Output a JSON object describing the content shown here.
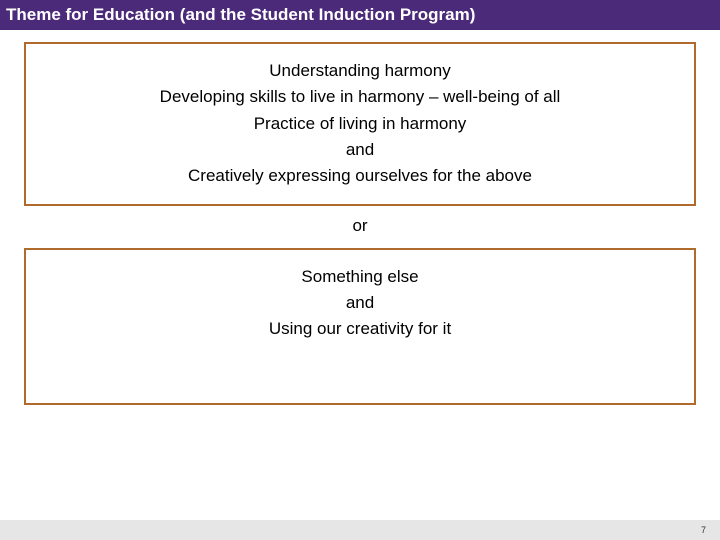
{
  "colors": {
    "title_bg": "#4c2a7a",
    "title_text": "#ffffff",
    "box_border": "#b06a2c",
    "box_border_width": 2,
    "footer_bg": "#e6e6e6",
    "page_num_text": "#333333",
    "body_text": "#000000"
  },
  "title": "Theme for Education (and the Student Induction Program)",
  "box1": {
    "lines": [
      "Understanding harmony",
      "Developing skills to live in harmony – well-being of all",
      "Practice of living in harmony",
      "and",
      "Creatively expressing ourselves for the above"
    ]
  },
  "connector": "or",
  "box2": {
    "lines": [
      "Something else",
      "and",
      "Using our creativity for it"
    ],
    "extra_bottom_padding": 60
  },
  "page_number": "7"
}
